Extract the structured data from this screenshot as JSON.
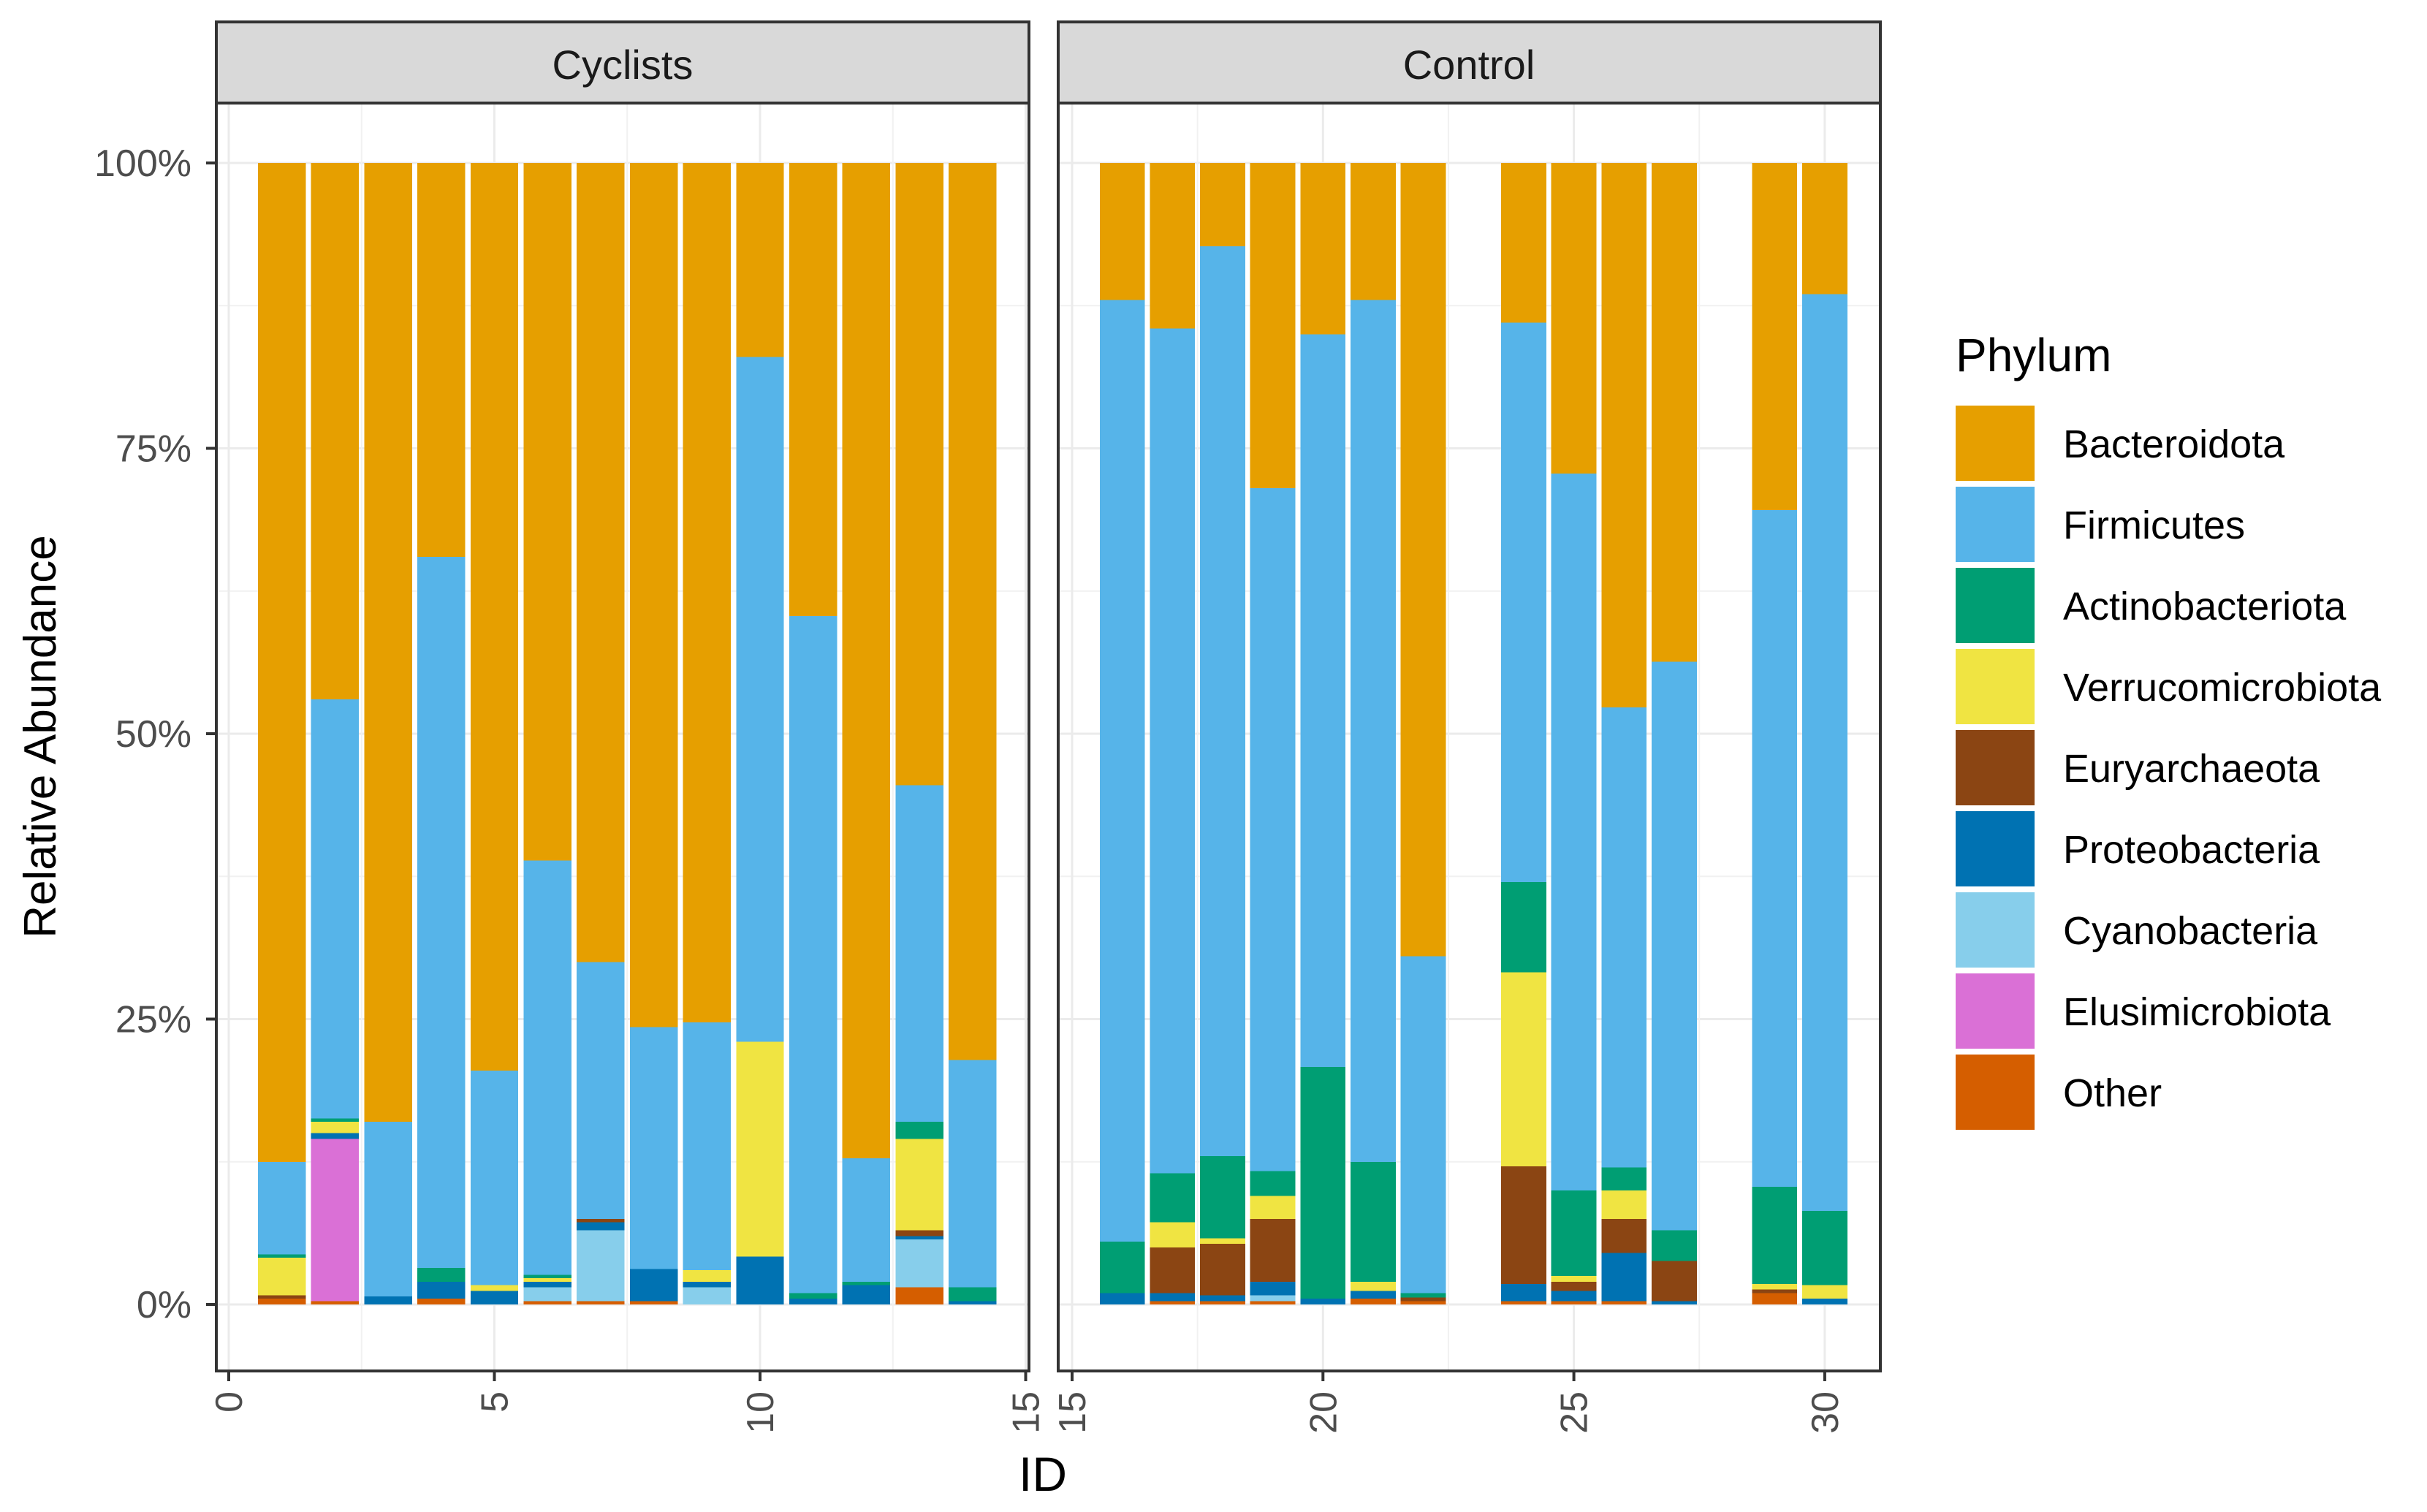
{
  "chart_data": {
    "type": "bar",
    "stacked": true,
    "xlabel": "ID",
    "ylabel": "Relative Abundance",
    "ylim": [
      0,
      1
    ],
    "yticks": [
      0,
      0.25,
      0.5,
      0.75,
      1.0
    ],
    "ytick_labels": [
      "0%",
      "25%",
      "50%",
      "75%",
      "100%"
    ],
    "legend": {
      "title": "Phylum",
      "position": "right",
      "items": [
        "Bacteroidota",
        "Firmicutes",
        "Actinobacteriota",
        "Verrucomicrobiota",
        "Euryarchaeota",
        "Proteobacteria",
        "Cyanobacteria",
        "Elusimicrobiota",
        "Other"
      ]
    },
    "colors": {
      "Bacteroidota": "#E69F00",
      "Firmicutes": "#56B4E9",
      "Actinobacteriota": "#009E73",
      "Verrucomicrobiota": "#F0E442",
      "Euryarchaeota": "#8B4513",
      "Proteobacteria": "#0072B2",
      "Cyanobacteria": "#87CEEB",
      "Elusimicrobiota": "#DA70D6",
      "Other": "#D55E00"
    },
    "stack_order": [
      "Other",
      "Elusimicrobiota",
      "Cyanobacteria",
      "Proteobacteria",
      "Euryarchaeota",
      "Verrucomicrobiota",
      "Actinobacteriota",
      "Firmicutes",
      "Bacteroidota"
    ],
    "panels": [
      {
        "label": "Cyclists",
        "xlim": [
          0,
          15
        ],
        "xticks": [
          0,
          5,
          10,
          15
        ],
        "samples": [
          {
            "id": 1,
            "values": {
              "Other": 0.5,
              "Elusimicrobiota": 0,
              "Cyanobacteria": 0,
              "Proteobacteria": 0,
              "Euryarchaeota": 0.3,
              "Verrucomicrobiota": 3.3,
              "Actinobacteriota": 0.3,
              "Firmicutes": 8.1,
              "Bacteroidota": 87.5
            }
          },
          {
            "id": 2,
            "values": {
              "Other": 0.3,
              "Elusimicrobiota": 14.2,
              "Cyanobacteria": 0,
              "Proteobacteria": 0.5,
              "Euryarchaeota": 0,
              "Verrucomicrobiota": 1.0,
              "Actinobacteriota": 0.3,
              "Firmicutes": 36.7,
              "Bacteroidota": 47.0
            }
          },
          {
            "id": 3,
            "values": {
              "Other": 0,
              "Elusimicrobiota": 0,
              "Cyanobacteria": 0,
              "Proteobacteria": 0.7,
              "Euryarchaeota": 0,
              "Verrucomicrobiota": 0,
              "Actinobacteriota": 0,
              "Firmicutes": 15.3,
              "Bacteroidota": 84.0
            }
          },
          {
            "id": 4,
            "values": {
              "Other": 0.5,
              "Elusimicrobiota": 0,
              "Cyanobacteria": 0,
              "Proteobacteria": 1.5,
              "Euryarchaeota": 0,
              "Verrucomicrobiota": 0,
              "Actinobacteriota": 1.2,
              "Firmicutes": 62.3,
              "Bacteroidota": 34.5
            }
          },
          {
            "id": 5,
            "values": {
              "Other": 0,
              "Elusimicrobiota": 0,
              "Cyanobacteria": 0,
              "Proteobacteria": 1.2,
              "Euryarchaeota": 0,
              "Verrucomicrobiota": 0.5,
              "Actinobacteriota": 0,
              "Firmicutes": 18.8,
              "Bacteroidota": 79.5
            }
          },
          {
            "id": 6,
            "values": {
              "Other": 0.3,
              "Elusimicrobiota": 0,
              "Cyanobacteria": 1.2,
              "Proteobacteria": 0.5,
              "Euryarchaeota": 0,
              "Verrucomicrobiota": 0.3,
              "Actinobacteriota": 0.3,
              "Firmicutes": 36.3,
              "Bacteroidota": 61.1
            }
          },
          {
            "id": 7,
            "values": {
              "Other": 0.3,
              "Elusimicrobiota": 0,
              "Cyanobacteria": 6.2,
              "Proteobacteria": 0.7,
              "Euryarchaeota": 0.3,
              "Verrucomicrobiota": 0,
              "Actinobacteriota": 0,
              "Firmicutes": 22.5,
              "Bacteroidota": 70.0
            }
          },
          {
            "id": 8,
            "values": {
              "Other": 0.3,
              "Elusimicrobiota": 0,
              "Cyanobacteria": 0,
              "Proteobacteria": 2.8,
              "Euryarchaeota": 0,
              "Verrucomicrobiota": 0,
              "Actinobacteriota": 0,
              "Firmicutes": 21.2,
              "Bacteroidota": 75.7
            }
          },
          {
            "id": 9,
            "values": {
              "Other": 0,
              "Elusimicrobiota": 0,
              "Cyanobacteria": 1.5,
              "Proteobacteria": 0.5,
              "Euryarchaeota": 0,
              "Verrucomicrobiota": 1.0,
              "Actinobacteriota": 0,
              "Firmicutes": 21.7,
              "Bacteroidota": 75.3
            }
          },
          {
            "id": 10,
            "values": {
              "Other": 0,
              "Elusimicrobiota": 0,
              "Cyanobacteria": 0,
              "Proteobacteria": 4.2,
              "Euryarchaeota": 0,
              "Verrucomicrobiota": 18.8,
              "Actinobacteriota": 0,
              "Firmicutes": 60.0,
              "Bacteroidota": 17.0
            }
          },
          {
            "id": 11,
            "values": {
              "Other": 0,
              "Elusimicrobiota": 0,
              "Cyanobacteria": 0,
              "Proteobacteria": 0.5,
              "Euryarchaeota": 0,
              "Verrucomicrobiota": 0,
              "Actinobacteriota": 0.5,
              "Firmicutes": 59.3,
              "Bacteroidota": 39.7
            }
          },
          {
            "id": 12,
            "values": {
              "Other": 0,
              "Elusimicrobiota": 0,
              "Cyanobacteria": 0,
              "Proteobacteria": 1.7,
              "Euryarchaeota": 0,
              "Verrucomicrobiota": 0,
              "Actinobacteriota": 0.3,
              "Firmicutes": 10.8,
              "Bacteroidota": 87.2
            }
          },
          {
            "id": 13,
            "values": {
              "Other": 1.5,
              "Elusimicrobiota": 0,
              "Cyanobacteria": 4.2,
              "Proteobacteria": 0.3,
              "Euryarchaeota": 0.5,
              "Verrucomicrobiota": 8.0,
              "Actinobacteriota": 1.5,
              "Firmicutes": 29.5,
              "Bacteroidota": 54.5
            }
          },
          {
            "id": 14,
            "values": {
              "Other": 0,
              "Elusimicrobiota": 0,
              "Cyanobacteria": 0,
              "Proteobacteria": 0.3,
              "Euryarchaeota": 0,
              "Verrucomicrobiota": 0,
              "Actinobacteriota": 1.2,
              "Firmicutes": 19.9,
              "Bacteroidota": 78.6
            }
          }
        ]
      },
      {
        "label": "Control",
        "xlim": [
          15,
          31
        ],
        "xticks": [
          15,
          20,
          25,
          30
        ],
        "samples": [
          {
            "id": 16,
            "values": {
              "Other": 0,
              "Elusimicrobiota": 0,
              "Cyanobacteria": 0,
              "Proteobacteria": 1.0,
              "Euryarchaeota": 0,
              "Verrucomicrobiota": 0,
              "Actinobacteriota": 4.5,
              "Firmicutes": 82.5,
              "Bacteroidota": 12.0
            }
          },
          {
            "id": 17,
            "values": {
              "Other": 0.3,
              "Elusimicrobiota": 0,
              "Cyanobacteria": 0,
              "Proteobacteria": 0.7,
              "Euryarchaeota": 4.0,
              "Verrucomicrobiota": 2.2,
              "Actinobacteriota": 4.3,
              "Firmicutes": 74.0,
              "Bacteroidota": 14.5
            }
          },
          {
            "id": 18,
            "values": {
              "Other": 0.3,
              "Elusimicrobiota": 0,
              "Cyanobacteria": 0,
              "Proteobacteria": 0.5,
              "Euryarchaeota": 4.5,
              "Verrucomicrobiota": 0.5,
              "Actinobacteriota": 7.2,
              "Firmicutes": 79.7,
              "Bacteroidota": 7.3
            }
          },
          {
            "id": 19,
            "values": {
              "Other": 0.3,
              "Elusimicrobiota": 0,
              "Cyanobacteria": 0.5,
              "Proteobacteria": 1.2,
              "Euryarchaeota": 5.5,
              "Verrucomicrobiota": 2.0,
              "Actinobacteriota": 2.2,
              "Firmicutes": 59.8,
              "Bacteroidota": 28.5
            }
          },
          {
            "id": 20,
            "values": {
              "Other": 0,
              "Elusimicrobiota": 0,
              "Cyanobacteria": 0,
              "Proteobacteria": 0.5,
              "Euryarchaeota": 0,
              "Verrucomicrobiota": 0,
              "Actinobacteriota": 20.3,
              "Firmicutes": 64.2,
              "Bacteroidota": 15.0
            }
          },
          {
            "id": 21,
            "values": {
              "Other": 0.5,
              "Elusimicrobiota": 0,
              "Cyanobacteria": 0,
              "Proteobacteria": 0.7,
              "Euryarchaeota": 0,
              "Verrucomicrobiota": 0.8,
              "Actinobacteriota": 10.5,
              "Firmicutes": 75.5,
              "Bacteroidota": 12.0
            }
          },
          {
            "id": 22,
            "values": {
              "Other": 0.3,
              "Elusimicrobiota": 0,
              "Cyanobacteria": 0,
              "Proteobacteria": 0,
              "Euryarchaeota": 0.3,
              "Verrucomicrobiota": 0,
              "Actinobacteriota": 0.4,
              "Firmicutes": 29.5,
              "Bacteroidota": 69.5
            }
          },
          {
            "id": 24,
            "values": {
              "Other": 0.3,
              "Elusimicrobiota": 0,
              "Cyanobacteria": 0,
              "Proteobacteria": 1.5,
              "Euryarchaeota": 10.3,
              "Verrucomicrobiota": 17.0,
              "Actinobacteriota": 7.9,
              "Firmicutes": 49.0,
              "Bacteroidota": 14.0
            }
          },
          {
            "id": 25,
            "values": {
              "Other": 0.3,
              "Elusimicrobiota": 0,
              "Cyanobacteria": 0,
              "Proteobacteria": 0.9,
              "Euryarchaeota": 0.8,
              "Verrucomicrobiota": 0.5,
              "Actinobacteriota": 7.5,
              "Firmicutes": 62.8,
              "Bacteroidota": 27.2
            }
          },
          {
            "id": 26,
            "values": {
              "Other": 0.3,
              "Elusimicrobiota": 0,
              "Cyanobacteria": 0,
              "Proteobacteria": 4.2,
              "Euryarchaeota": 3.0,
              "Verrucomicrobiota": 2.5,
              "Actinobacteriota": 2.0,
              "Firmicutes": 40.3,
              "Bacteroidota": 47.7
            }
          },
          {
            "id": 27,
            "values": {
              "Other": 0,
              "Elusimicrobiota": 0,
              "Cyanobacteria": 0,
              "Proteobacteria": 0.3,
              "Euryarchaeota": 3.5,
              "Verrucomicrobiota": 0,
              "Actinobacteriota": 2.7,
              "Firmicutes": 49.8,
              "Bacteroidota": 43.7
            }
          },
          {
            "id": 29,
            "values": {
              "Other": 1.0,
              "Elusimicrobiota": 0,
              "Cyanobacteria": 0,
              "Proteobacteria": 0,
              "Euryarchaeota": 0.3,
              "Verrucomicrobiota": 0.5,
              "Actinobacteriota": 8.5,
              "Firmicutes": 59.3,
              "Bacteroidota": 30.4
            }
          },
          {
            "id": 30,
            "values": {
              "Other": 0,
              "Elusimicrobiota": 0,
              "Cyanobacteria": 0,
              "Proteobacteria": 0.5,
              "Euryarchaeota": 0,
              "Verrucomicrobiota": 1.2,
              "Actinobacteriota": 6.5,
              "Firmicutes": 80.3,
              "Bacteroidota": 11.5
            }
          }
        ]
      }
    ]
  }
}
